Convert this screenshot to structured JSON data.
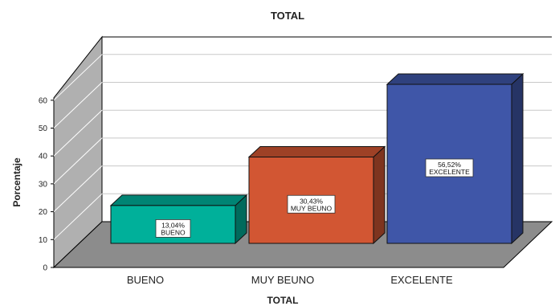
{
  "chart_data": {
    "type": "bar",
    "title": "TOTAL",
    "xlabel": "TOTAL",
    "ylabel": "Porcentaje",
    "categories": [
      "BUENO",
      "MUY BEUNO",
      "EXCELENTE"
    ],
    "values": [
      13.04,
      30.43,
      56.52
    ],
    "data_labels": [
      {
        "value": "13,04%",
        "category": "BUENO"
      },
      {
        "value": "30,43%",
        "category": "MUY BEUNO"
      },
      {
        "value": "56,52%",
        "category": "EXCELENTE"
      }
    ],
    "ylim": [
      0,
      60
    ],
    "yticks": [
      "0",
      "10",
      "20",
      "30",
      "40",
      "50",
      "60"
    ],
    "grid": true,
    "three_d": true,
    "colors": [
      "#00B09A",
      "#D25633",
      "#3F56A8"
    ],
    "wall_color": "#B0B0B0",
    "floor_color": "#8C8C8C"
  }
}
